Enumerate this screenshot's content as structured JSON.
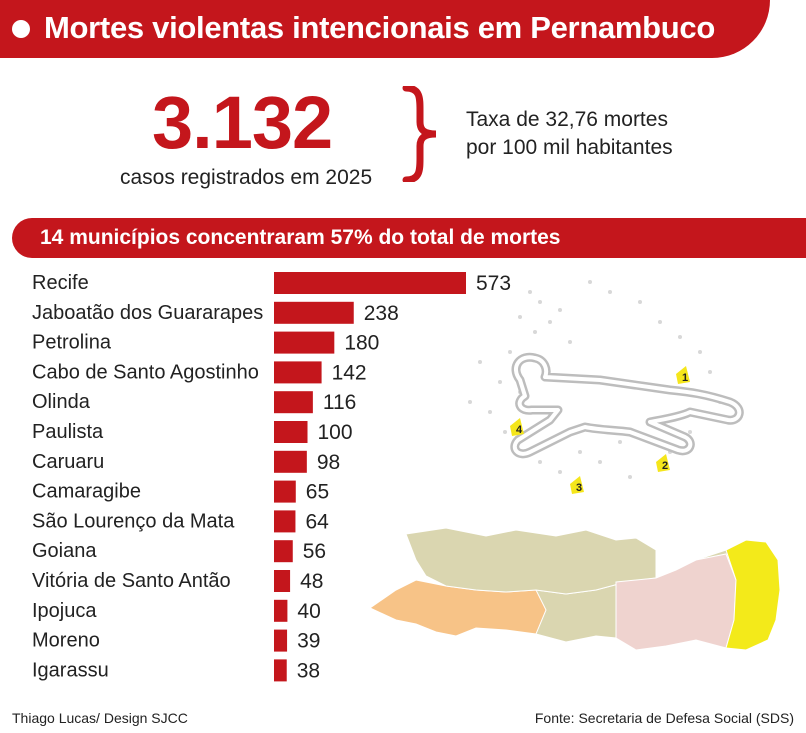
{
  "header": {
    "title": "Mortes violentas intencionais em Pernambuco"
  },
  "highlight": {
    "number": "3.132",
    "number_caption": "casos registrados em 2025",
    "rate_line1": "Taxa de 32,76 mortes",
    "rate_line2": "por 100 mil habitantes"
  },
  "chart_data": {
    "type": "bar",
    "orientation": "horizontal",
    "title": "14 municípios concentraram 57% do total de mortes",
    "categories": [
      "Recife",
      "Jaboatão dos Guararapes",
      "Petrolina",
      "Cabo de Santo Agostinho",
      "Olinda",
      "Paulista",
      "Caruaru",
      "Camaragibe",
      "São Lourenço da Mata",
      "Goiana",
      "Vitória de Santo Antão",
      "Ipojuca",
      "Moreno",
      "Igarassu"
    ],
    "values": [
      573,
      238,
      180,
      142,
      116,
      100,
      98,
      65,
      64,
      56,
      48,
      40,
      39,
      38
    ],
    "value_labels": [
      "573",
      "238",
      "180",
      "142",
      "116",
      "100",
      "98",
      "65",
      "64",
      "56",
      "48",
      "40",
      "39",
      "38"
    ],
    "bar_color": "#c4161c",
    "xlim": [
      0,
      573
    ],
    "grid": false,
    "legend": "none"
  },
  "illustration": {
    "icon": "chalk-body-outline-icon",
    "evidence_markers": [
      "1",
      "2",
      "3",
      "4"
    ],
    "marker_color": "#f5e61b"
  },
  "map": {
    "icon": "pernambuco-map-icon",
    "region_colors": [
      "#f7c387",
      "#dad6b0",
      "#efd3cf",
      "#f3ea1a"
    ]
  },
  "footer": {
    "credit": "Thiago Lucas/ Design  SJCC",
    "source": "Fonte: Secretaria de Defesa Social (SDS)"
  }
}
